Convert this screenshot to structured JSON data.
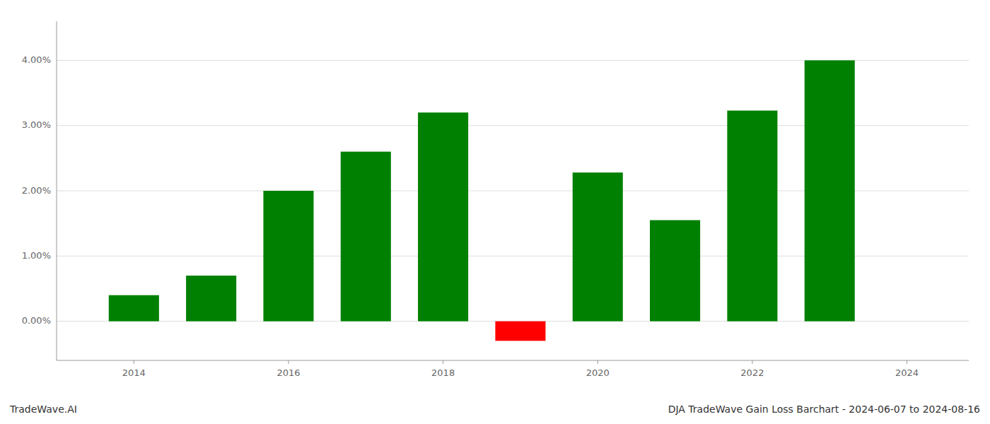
{
  "chart_data": {
    "type": "bar",
    "title": "DJA TradeWave Gain Loss Barchart - 2024-06-07 to 2024-08-16",
    "annotations": [
      "TradeWave.AI"
    ],
    "x": [
      2014,
      2015,
      2016,
      2017,
      2018,
      2019,
      2020,
      2021,
      2022,
      2023
    ],
    "values": [
      0.004,
      0.007,
      0.02,
      0.026,
      0.032,
      -0.003,
      0.0228,
      0.0155,
      0.0323,
      0.04
    ],
    "colors": [
      "#008000",
      "#008000",
      "#008000",
      "#008000",
      "#008000",
      "#ff0000",
      "#008000",
      "#008000",
      "#008000",
      "#008000"
    ],
    "xlim": [
      2013.0,
      2024.8
    ],
    "xticks": [
      2014,
      2016,
      2018,
      2020,
      2022,
      2024
    ],
    "ylim": [
      -0.006,
      0.046
    ],
    "yticks": [
      {
        "value": 0.0,
        "label": "0.00%"
      },
      {
        "value": 0.01,
        "label": "1.00%"
      },
      {
        "value": 0.02,
        "label": "2.00%"
      },
      {
        "value": 0.03,
        "label": "3.00%"
      },
      {
        "value": 0.04,
        "label": "4.00%"
      }
    ],
    "grid": true
  }
}
